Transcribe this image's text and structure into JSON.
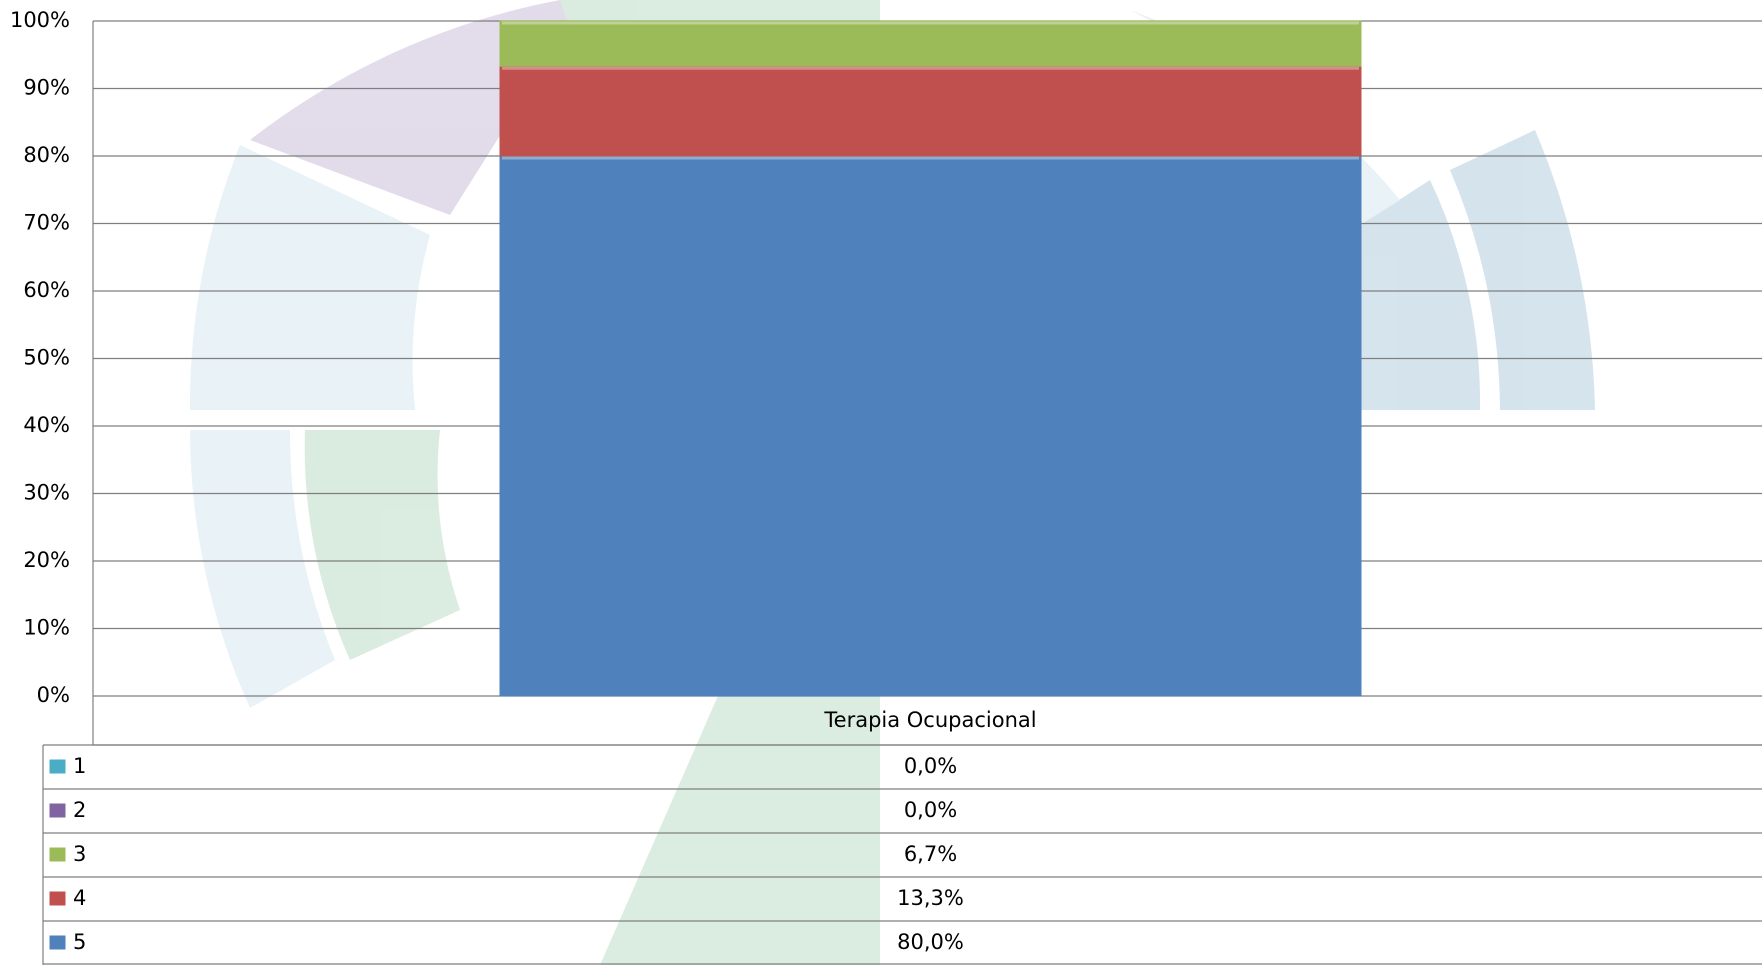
{
  "chart_data": {
    "type": "bar",
    "stacked": true,
    "categories": [
      "Terapia Ocupacional"
    ],
    "series": [
      {
        "name": "1",
        "color": "#4bacc6",
        "values": [
          0
        ],
        "value_labels": [
          "0,0%"
        ]
      },
      {
        "name": "2",
        "color": "#8064a2",
        "values": [
          0
        ],
        "value_labels": [
          "0,0%"
        ]
      },
      {
        "name": "3",
        "color": "#9bbb59",
        "values": [
          6.7
        ],
        "value_labels": [
          "6,7%"
        ]
      },
      {
        "name": "4",
        "color": "#c0504d",
        "values": [
          13.3
        ],
        "value_labels": [
          "13,3%"
        ]
      },
      {
        "name": "5",
        "color": "#4f81bd",
        "values": [
          80
        ],
        "value_labels": [
          "80,0%"
        ]
      }
    ],
    "ylim": [
      0,
      100
    ],
    "yticks": [
      {
        "value": 0,
        "label": "0%"
      },
      {
        "value": 10,
        "label": "10%"
      },
      {
        "value": 20,
        "label": "20%"
      },
      {
        "value": 30,
        "label": "30%"
      },
      {
        "value": 40,
        "label": "40%"
      },
      {
        "value": 50,
        "label": "50%"
      },
      {
        "value": 60,
        "label": "60%"
      },
      {
        "value": 70,
        "label": "70%"
      },
      {
        "value": 80,
        "label": "80%"
      },
      {
        "value": 90,
        "label": "90%"
      },
      {
        "value": 100,
        "label": "100%"
      }
    ],
    "grid": true
  }
}
